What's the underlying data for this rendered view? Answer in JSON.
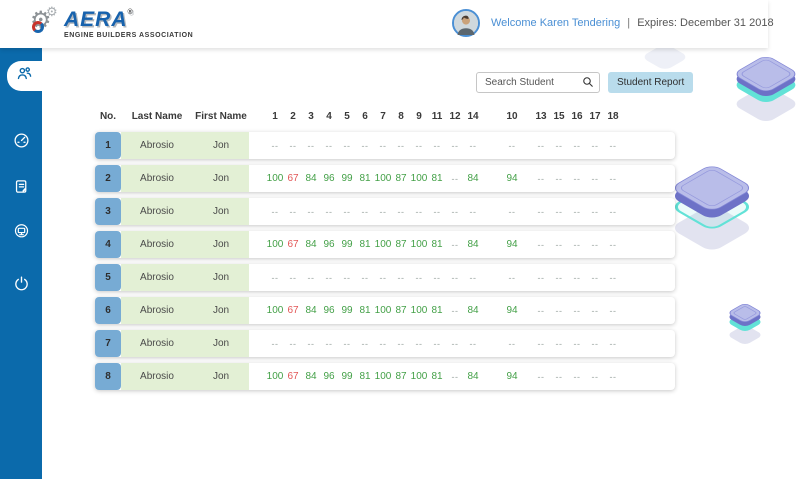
{
  "header": {
    "logo": {
      "brand": "AERA",
      "registered": "®",
      "tagline": "ENGINE BUILDERS ASSOCIATION"
    },
    "welcome": {
      "greeting": "Welcome Karen Tendering",
      "separator": "|",
      "expires": "Expires: December 31 2018"
    }
  },
  "sidebar": {
    "items": [
      {
        "icon": "users-icon",
        "active": true
      },
      {
        "icon": "dashboard-icon",
        "active": false
      },
      {
        "icon": "document-edit-icon",
        "active": false
      },
      {
        "icon": "monitor-icon",
        "active": false
      },
      {
        "icon": "power-icon",
        "active": false
      }
    ]
  },
  "toolbar": {
    "search_placeholder": "Search Student",
    "student_report_label": "Student Report"
  },
  "table": {
    "columns": {
      "no": "No.",
      "last_name": "Last Name",
      "first_name": "First Name"
    },
    "score_columns": [
      "1",
      "2",
      "3",
      "4",
      "5",
      "6",
      "7",
      "8",
      "9",
      "11",
      "12",
      "14",
      "10",
      "13",
      "15",
      "16",
      "17",
      "18"
    ],
    "rows": [
      {
        "no": "1",
        "last_name": "Abrosio",
        "first_name": "Jon",
        "scores": [
          "--",
          "--",
          "--",
          "--",
          "--",
          "--",
          "--",
          "--",
          "--",
          "--",
          "--",
          "--",
          "--",
          "--",
          "--",
          "--",
          "--",
          "--"
        ]
      },
      {
        "no": "2",
        "last_name": "Abrosio",
        "first_name": "Jon",
        "scores": [
          "100",
          "67",
          "84",
          "96",
          "99",
          "81",
          "100",
          "87",
          "100",
          "81",
          "--",
          "84",
          "94",
          "--",
          "--",
          "--",
          "--",
          "--"
        ]
      },
      {
        "no": "3",
        "last_name": "Abrosio",
        "first_name": "Jon",
        "scores": [
          "--",
          "--",
          "--",
          "--",
          "--",
          "--",
          "--",
          "--",
          "--",
          "--",
          "--",
          "--",
          "--",
          "--",
          "--",
          "--",
          "--",
          "--"
        ]
      },
      {
        "no": "4",
        "last_name": "Abrosio",
        "first_name": "Jon",
        "scores": [
          "100",
          "67",
          "84",
          "96",
          "99",
          "81",
          "100",
          "87",
          "100",
          "81",
          "--",
          "84",
          "94",
          "--",
          "--",
          "--",
          "--",
          "--"
        ]
      },
      {
        "no": "5",
        "last_name": "Abrosio",
        "first_name": "Jon",
        "scores": [
          "--",
          "--",
          "--",
          "--",
          "--",
          "--",
          "--",
          "--",
          "--",
          "--",
          "--",
          "--",
          "--",
          "--",
          "--",
          "--",
          "--",
          "--"
        ]
      },
      {
        "no": "6",
        "last_name": "Abrosio",
        "first_name": "Jon",
        "scores": [
          "100",
          "67",
          "84",
          "96",
          "99",
          "81",
          "100",
          "87",
          "100",
          "81",
          "--",
          "84",
          "94",
          "--",
          "--",
          "--",
          "--",
          "--"
        ]
      },
      {
        "no": "7",
        "last_name": "Abrosio",
        "first_name": "Jon",
        "scores": [
          "--",
          "--",
          "--",
          "--",
          "--",
          "--",
          "--",
          "--",
          "--",
          "--",
          "--",
          "--",
          "--",
          "--",
          "--",
          "--",
          "--",
          "--"
        ]
      },
      {
        "no": "8",
        "last_name": "Abrosio",
        "first_name": "Jon",
        "scores": [
          "100",
          "67",
          "84",
          "96",
          "99",
          "81",
          "100",
          "87",
          "100",
          "81",
          "--",
          "84",
          "94",
          "--",
          "--",
          "--",
          "--",
          "--"
        ]
      }
    ]
  },
  "score_rules": {
    "fail_below": 70
  },
  "colors": {
    "sidebar_blue": "#0b6aab",
    "badge_blue": "#77abd4",
    "name_bg_green": "#e3f0d5",
    "score_pass": "#43a047",
    "score_fail": "#e25555",
    "score_empty": "#9aa5a0",
    "accent_blue": "#4a8fd4",
    "report_button_bg": "#b9dcec",
    "brand_blue": "#1762ad"
  }
}
